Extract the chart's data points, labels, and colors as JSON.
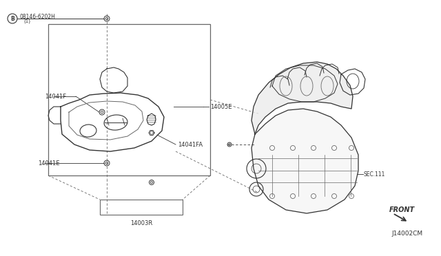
{
  "bg_color": "#ffffff",
  "line_color": "#666666",
  "dark_color": "#333333",
  "labels": {
    "part_number_top": "08146-6202H",
    "part_number_top_sub": "(1)",
    "label_14041F": "14041F",
    "label_14041FA": "14041FA",
    "label_14041E": "14041E",
    "label_14005E": "14005E",
    "label_14003R": "14003R",
    "label_sec111": "SEC.111",
    "label_front": "FRONT",
    "label_diagram_code": "J14002CM"
  }
}
